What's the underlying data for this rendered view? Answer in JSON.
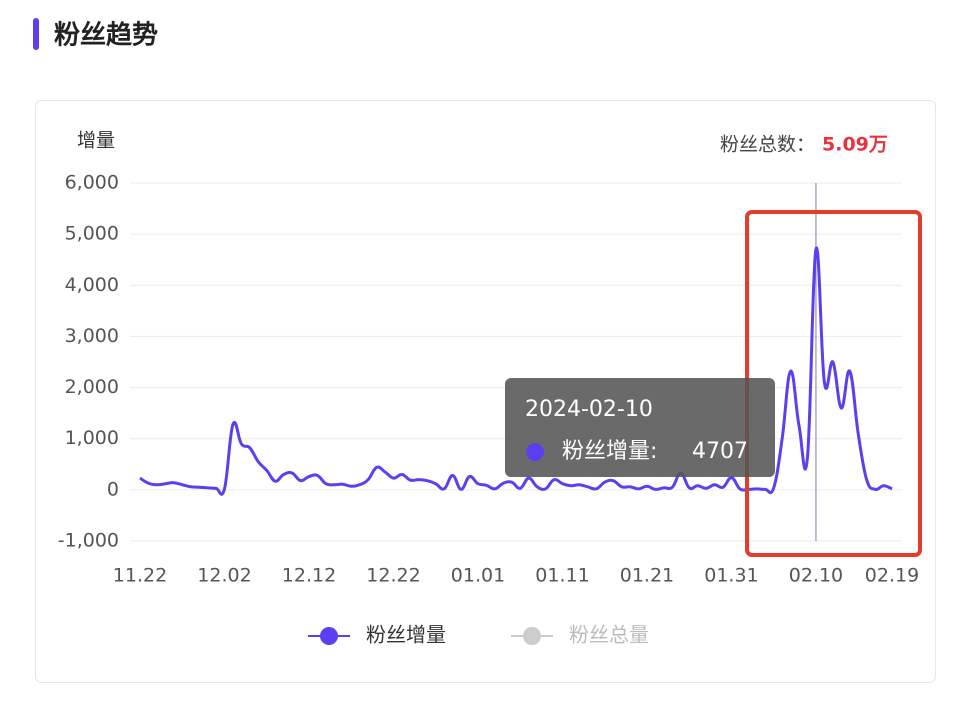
{
  "section_title": "粉丝趋势",
  "header": {
    "total_label": "粉丝总数：",
    "total_value": "5.09万"
  },
  "tooltip": {
    "title": "2024-02-10",
    "label": "粉丝增量:"
  },
  "chart_data": {
    "type": "line",
    "y_label": "增量",
    "categories": [
      "11.22",
      null,
      null,
      null,
      null,
      null,
      null,
      null,
      null,
      null,
      "12.02",
      null,
      null,
      null,
      null,
      null,
      null,
      null,
      null,
      null,
      "12.12",
      null,
      null,
      null,
      null,
      null,
      null,
      null,
      null,
      null,
      "12.22",
      null,
      null,
      null,
      null,
      null,
      null,
      null,
      null,
      null,
      "01.01",
      null,
      null,
      null,
      null,
      null,
      null,
      null,
      null,
      null,
      "01.11",
      null,
      null,
      null,
      null,
      null,
      null,
      null,
      null,
      null,
      "01.21",
      null,
      null,
      null,
      null,
      null,
      null,
      null,
      null,
      null,
      "01.31",
      null,
      null,
      null,
      null,
      null,
      null,
      null,
      null,
      null,
      "02.10",
      null,
      null,
      null,
      null,
      null,
      null,
      null,
      null,
      "02.19"
    ],
    "series": [
      {
        "name": "粉丝增量",
        "color": "#5b3ff0",
        "visible": true,
        "values": [
          230,
          130,
          100,
          120,
          140,
          100,
          60,
          50,
          40,
          30,
          20,
          1280,
          900,
          820,
          550,
          380,
          170,
          300,
          330,
          180,
          260,
          280,
          120,
          100,
          110,
          70,
          100,
          200,
          440,
          350,
          230,
          300,
          190,
          200,
          180,
          120,
          20,
          280,
          10,
          260,
          120,
          90,
          20,
          130,
          150,
          30,
          230,
          60,
          20,
          200,
          120,
          80,
          100,
          60,
          20,
          150,
          180,
          60,
          60,
          20,
          70,
          10,
          40,
          50,
          330,
          40,
          80,
          30,
          100,
          50,
          240,
          20,
          10,
          20,
          10,
          40,
          1000,
          2320,
          1250,
          650,
          4707,
          2100,
          2500,
          1600,
          2320,
          1100,
          200,
          10,
          80,
          20
        ]
      },
      {
        "name": "粉丝总量",
        "color": "#cccccc",
        "visible": false
      }
    ],
    "ylim": [
      -1000,
      6000
    ],
    "yticks": [
      {
        "value": -1000,
        "label": "-1,000"
      },
      0,
      {
        "value": 1000,
        "label": "1,000"
      },
      {
        "value": 2000,
        "label": "2,000"
      },
      {
        "value": 3000,
        "label": "3,000"
      },
      {
        "value": 4000,
        "label": "4,000"
      },
      {
        "value": 5000,
        "label": "5,000"
      },
      {
        "value": 6000,
        "label": "6,000"
      }
    ],
    "grid": true
  }
}
